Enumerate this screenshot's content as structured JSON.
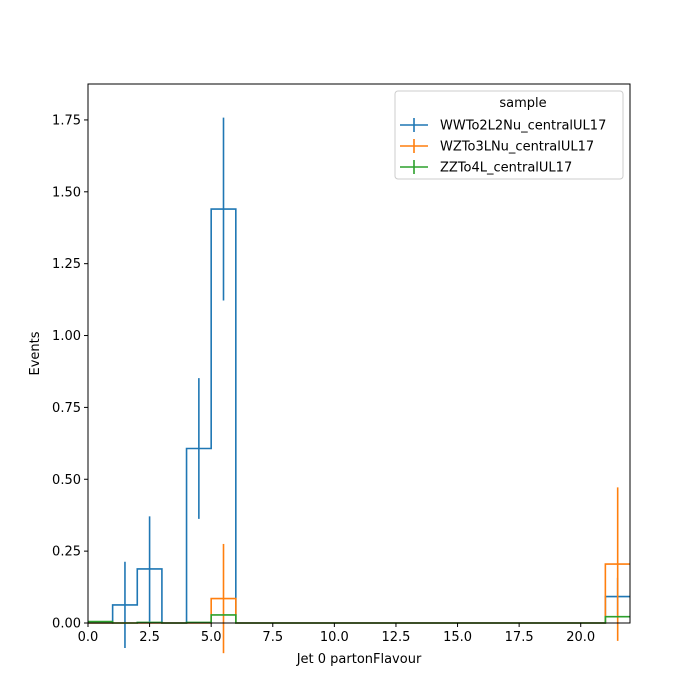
{
  "chart_data": {
    "type": "histogram",
    "xlabel": "Jet 0 partonFlavour",
    "ylabel": "Events",
    "xlim": [
      0,
      22
    ],
    "ylim": [
      0,
      1.875
    ],
    "x_ticks": [
      0,
      2.5,
      5,
      7.5,
      10,
      12.5,
      15,
      17.5,
      20
    ],
    "x_tick_labels": [
      "0.0",
      "2.5",
      "5.0",
      "7.5",
      "10.0",
      "12.5",
      "15.0",
      "17.5",
      "20.0"
    ],
    "y_ticks": [
      0,
      0.25,
      0.5,
      0.75,
      1.0,
      1.25,
      1.5,
      1.75
    ],
    "y_tick_labels": [
      "0.00",
      "0.25",
      "0.50",
      "0.75",
      "1.00",
      "1.25",
      "1.50",
      "1.75"
    ],
    "grid": false,
    "legend": {
      "title": "sample",
      "placement": "top-right"
    },
    "bin_edges": [
      0,
      1,
      2,
      3,
      4,
      5,
      6,
      7,
      8,
      9,
      10,
      11,
      12,
      13,
      14,
      15,
      16,
      17,
      18,
      19,
      20,
      21,
      22
    ],
    "series": [
      {
        "name": "WWTo2L2Nu_centralUL17",
        "color": "#1f77b4",
        "values": [
          0,
          0.063,
          0.188,
          0,
          0.607,
          1.44,
          0,
          0,
          0,
          0,
          0,
          0,
          0,
          0,
          0,
          0,
          0,
          0,
          0,
          0,
          0,
          0.092
        ],
        "errors": [
          0,
          0.15,
          0.183,
          0,
          0.245,
          0.318,
          0,
          0,
          0,
          0,
          0,
          0,
          0,
          0,
          0,
          0,
          0,
          0,
          0,
          0,
          0,
          0.065
        ]
      },
      {
        "name": "WZTo3LNu_centralUL17",
        "color": "#ff7f0e",
        "values": [
          0,
          0,
          0,
          0,
          0,
          0.085,
          0,
          0,
          0,
          0,
          0,
          0,
          0,
          0,
          0,
          0,
          0,
          0,
          0,
          0,
          0,
          0.205
        ],
        "errors": [
          0,
          0,
          0,
          0,
          0,
          0.19,
          0,
          0,
          0,
          0,
          0,
          0,
          0,
          0,
          0,
          0,
          0,
          0,
          0,
          0,
          0,
          0.267
        ]
      },
      {
        "name": "ZZTo4L_centralUL17",
        "color": "#2ca02c",
        "values": [
          0.005,
          0,
          0.002,
          0,
          0.002,
          0.028,
          0,
          0,
          0,
          0,
          0,
          0,
          0,
          0,
          0,
          0,
          0,
          0,
          0,
          0,
          0,
          0.022
        ],
        "errors": [
          0,
          0,
          0,
          0,
          0,
          0,
          0,
          0,
          0,
          0,
          0,
          0,
          0,
          0,
          0,
          0,
          0,
          0,
          0,
          0,
          0,
          0
        ]
      }
    ]
  }
}
